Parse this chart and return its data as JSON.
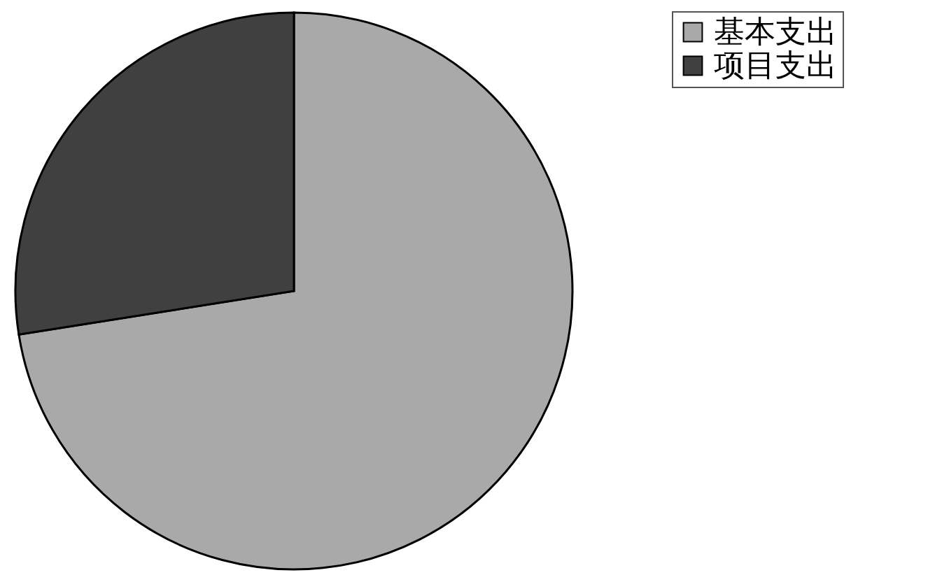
{
  "chart_data": {
    "type": "pie",
    "categories": [
      "基本支出",
      "项目支出"
    ],
    "values": [
      72.5,
      27.5
    ],
    "colors": [
      "#a9a9a9",
      "#404040"
    ],
    "legend": "right"
  }
}
